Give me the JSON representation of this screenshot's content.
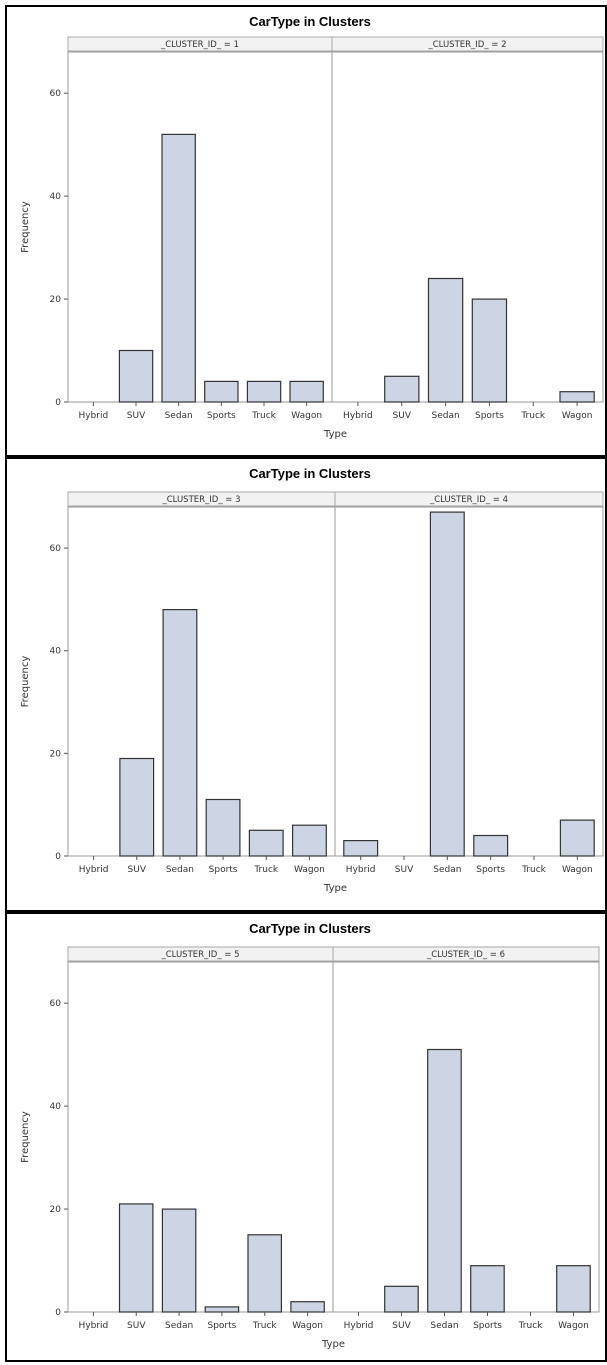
{
  "colors": {
    "bar_fill": "#cdd4e3",
    "bar_edge": "#333333"
  },
  "chart_data": [
    {
      "type": "bar",
      "title": "CarType in Clusters",
      "xlabel": "Type",
      "ylabel": "Frequency",
      "ylim": [
        0,
        68
      ],
      "yticks": [
        0,
        20,
        40,
        60
      ],
      "categories": [
        "Hybrid",
        "SUV",
        "Sedan",
        "Sports",
        "Truck",
        "Wagon"
      ],
      "panels": [
        {
          "label": "_CLUSTER_ID_ = 1",
          "values": [
            0,
            10,
            52,
            4,
            4,
            4
          ]
        },
        {
          "label": "_CLUSTER_ID_ = 2",
          "values": [
            0,
            5,
            24,
            20,
            0,
            2
          ]
        }
      ]
    },
    {
      "type": "bar",
      "title": "CarType in Clusters",
      "xlabel": "Type",
      "ylabel": "Frequency",
      "ylim": [
        0,
        68
      ],
      "yticks": [
        0,
        20,
        40,
        60
      ],
      "categories": [
        "Hybrid",
        "SUV",
        "Sedan",
        "Sports",
        "Truck",
        "Wagon"
      ],
      "panels": [
        {
          "label": "_CLUSTER_ID_ = 3",
          "values": [
            0,
            19,
            48,
            11,
            5,
            6
          ]
        },
        {
          "label": "_CLUSTER_ID_ = 4",
          "values": [
            3,
            0,
            67,
            4,
            0,
            7
          ]
        }
      ]
    },
    {
      "type": "bar",
      "title": "CarType in Clusters",
      "xlabel": "Type",
      "ylabel": "Frequency",
      "ylim": [
        0,
        68
      ],
      "yticks": [
        0,
        20,
        40,
        60
      ],
      "categories": [
        "Hybrid",
        "SUV",
        "Sedan",
        "Sports",
        "Truck",
        "Wagon"
      ],
      "panels": [
        {
          "label": "_CLUSTER_ID_ = 5",
          "values": [
            0,
            21,
            20,
            1,
            15,
            2
          ]
        },
        {
          "label": "_CLUSTER_ID_ = 6",
          "values": [
            0,
            5,
            51,
            9,
            0,
            9
          ]
        }
      ]
    }
  ]
}
